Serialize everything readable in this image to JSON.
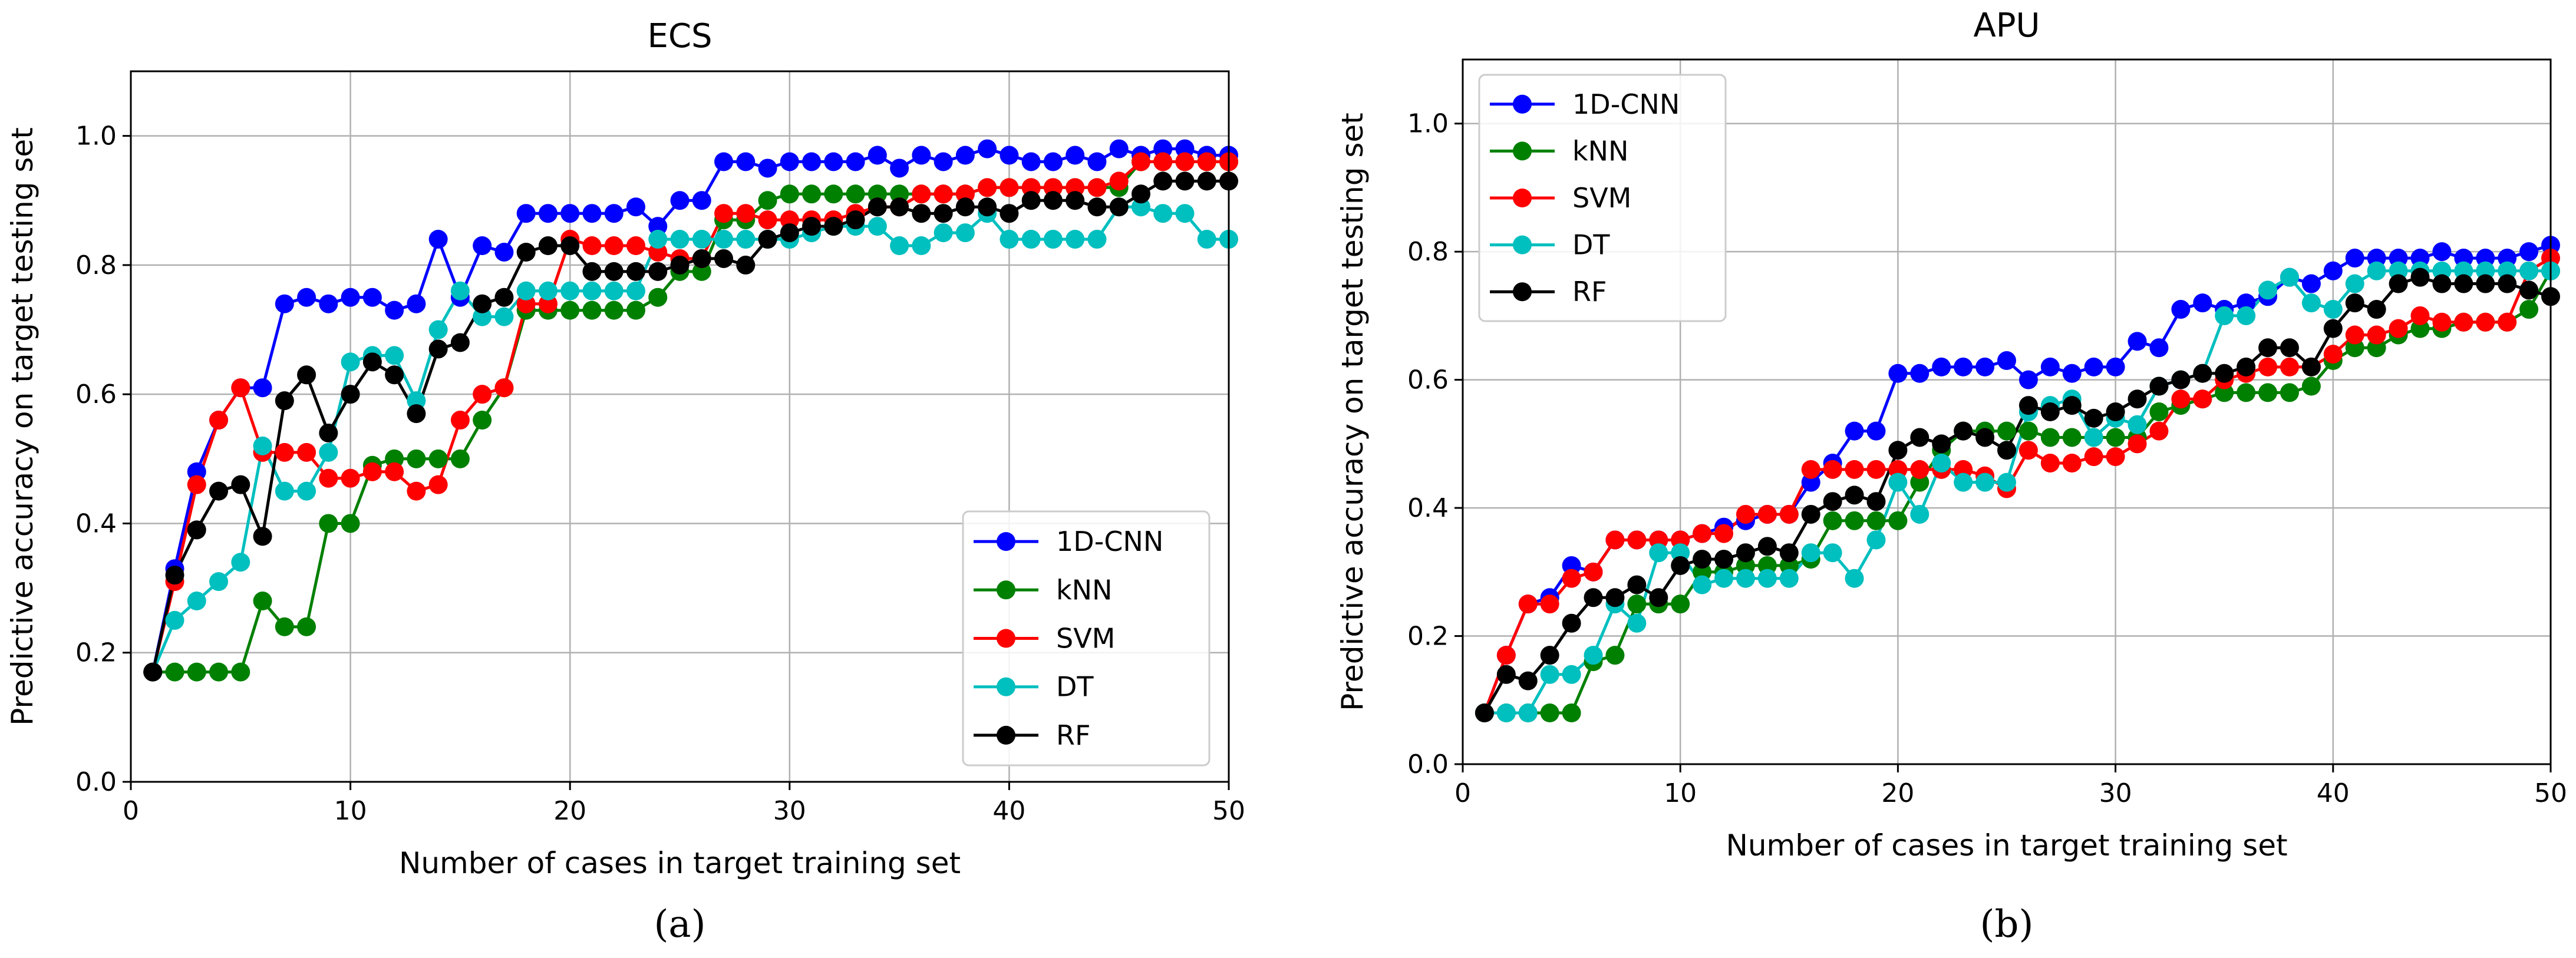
{
  "chart_data": [
    {
      "type": "line",
      "title": "ECS",
      "panel_label": "(a)",
      "xlabel": "Number of cases in target training set",
      "ylabel": "Predictive accuracy on target testing set",
      "xlim": [
        0,
        50
      ],
      "ylim": [
        0,
        1.1
      ],
      "xticks": [
        0,
        10,
        20,
        30,
        40,
        50
      ],
      "yticks": [
        0.0,
        0.2,
        0.4,
        0.6,
        0.8,
        1.0
      ],
      "xtick_labels": [
        "0",
        "10",
        "20",
        "30",
        "40",
        "50"
      ],
      "ytick_labels": [
        "0.0",
        "0.2",
        "0.4",
        "0.6",
        "0.8",
        "1.0"
      ],
      "grid": true,
      "legend_position": "lower-right",
      "x": [
        1,
        2,
        3,
        4,
        5,
        6,
        7,
        8,
        9,
        10,
        11,
        12,
        13,
        14,
        15,
        16,
        17,
        18,
        19,
        20,
        21,
        22,
        23,
        24,
        25,
        26,
        27,
        28,
        29,
        30,
        31,
        32,
        33,
        34,
        35,
        36,
        37,
        38,
        39,
        40,
        41,
        42,
        43,
        44,
        45,
        46,
        47,
        48,
        49,
        50
      ],
      "series": [
        {
          "name": "1D-CNN",
          "color": "#0000ff",
          "values": [
            0.17,
            0.33,
            0.48,
            0.56,
            0.61,
            0.61,
            0.74,
            0.75,
            0.74,
            0.75,
            0.75,
            0.73,
            0.74,
            0.84,
            0.75,
            0.83,
            0.82,
            0.88,
            0.88,
            0.88,
            0.88,
            0.88,
            0.89,
            0.86,
            0.9,
            0.9,
            0.96,
            0.96,
            0.95,
            0.96,
            0.96,
            0.96,
            0.96,
            0.97,
            0.95,
            0.97,
            0.96,
            0.97,
            0.98,
            0.97,
            0.96,
            0.96,
            0.97,
            0.96,
            0.98,
            0.97,
            0.98,
            0.98,
            0.97,
            0.97
          ]
        },
        {
          "name": "kNN",
          "color": "#008000",
          "values": [
            0.17,
            0.17,
            0.17,
            0.17,
            0.17,
            0.28,
            0.24,
            0.24,
            0.4,
            0.4,
            0.49,
            0.5,
            0.5,
            0.5,
            0.5,
            0.56,
            0.61,
            0.73,
            0.73,
            0.73,
            0.73,
            0.73,
            0.73,
            0.75,
            0.79,
            0.79,
            0.87,
            0.87,
            0.9,
            0.91,
            0.91,
            0.91,
            0.91,
            0.91,
            0.91,
            0.91,
            0.91,
            0.91,
            0.92,
            0.92,
            0.92,
            0.92,
            0.92,
            0.92,
            0.92,
            0.96,
            0.96,
            0.96,
            0.96,
            0.96
          ]
        },
        {
          "name": "SVM",
          "color": "#ff0000",
          "values": [
            0.17,
            0.31,
            0.46,
            0.56,
            0.61,
            0.51,
            0.51,
            0.51,
            0.47,
            0.47,
            0.48,
            0.48,
            0.45,
            0.46,
            0.56,
            0.6,
            0.61,
            0.74,
            0.74,
            0.84,
            0.83,
            0.83,
            0.83,
            0.82,
            0.81,
            0.81,
            0.88,
            0.88,
            0.87,
            0.87,
            0.87,
            0.87,
            0.88,
            0.89,
            0.89,
            0.91,
            0.91,
            0.91,
            0.92,
            0.92,
            0.92,
            0.92,
            0.92,
            0.92,
            0.93,
            0.96,
            0.96,
            0.96,
            0.96,
            0.96
          ]
        },
        {
          "name": "DT",
          "color": "#00bfbf",
          "values": [
            0.17,
            0.25,
            0.28,
            0.31,
            0.34,
            0.52,
            0.45,
            0.45,
            0.51,
            0.65,
            0.66,
            0.66,
            0.59,
            0.7,
            0.76,
            0.72,
            0.72,
            0.76,
            0.76,
            0.76,
            0.76,
            0.76,
            0.76,
            0.84,
            0.84,
            0.84,
            0.84,
            0.84,
            0.84,
            0.84,
            0.85,
            0.86,
            0.86,
            0.86,
            0.83,
            0.83,
            0.85,
            0.85,
            0.88,
            0.84,
            0.84,
            0.84,
            0.84,
            0.84,
            0.89,
            0.89,
            0.88,
            0.88,
            0.84,
            0.84
          ]
        },
        {
          "name": "RF",
          "color": "#000000",
          "values": [
            0.17,
            0.32,
            0.39,
            0.45,
            0.46,
            0.38,
            0.59,
            0.63,
            0.54,
            0.6,
            0.65,
            0.63,
            0.57,
            0.67,
            0.68,
            0.74,
            0.75,
            0.82,
            0.83,
            0.83,
            0.79,
            0.79,
            0.79,
            0.79,
            0.8,
            0.81,
            0.81,
            0.8,
            0.84,
            0.85,
            0.86,
            0.86,
            0.87,
            0.89,
            0.89,
            0.88,
            0.88,
            0.89,
            0.89,
            0.88,
            0.9,
            0.9,
            0.9,
            0.89,
            0.89,
            0.91,
            0.93,
            0.93,
            0.93,
            0.93
          ]
        }
      ]
    },
    {
      "type": "line",
      "title": "APU",
      "panel_label": "(b)",
      "xlabel": "Number of cases in target training set",
      "ylabel": "Predictive accuracy on target testing set",
      "xlim": [
        0,
        50
      ],
      "ylim": [
        0,
        1.1
      ],
      "xticks": [
        0,
        10,
        20,
        30,
        40,
        50
      ],
      "yticks": [
        0.0,
        0.2,
        0.4,
        0.6,
        0.8,
        1.0
      ],
      "xtick_labels": [
        "0",
        "10",
        "20",
        "30",
        "40",
        "50"
      ],
      "ytick_labels": [
        "0.0",
        "0.2",
        "0.4",
        "0.6",
        "0.8",
        "1.0"
      ],
      "grid": true,
      "legend_position": "upper-left",
      "x": [
        1,
        2,
        3,
        4,
        5,
        6,
        7,
        8,
        9,
        10,
        11,
        12,
        13,
        14,
        15,
        16,
        17,
        18,
        19,
        20,
        21,
        22,
        23,
        24,
        25,
        26,
        27,
        28,
        29,
        30,
        31,
        32,
        33,
        34,
        35,
        36,
        37,
        38,
        39,
        40,
        41,
        42,
        43,
        44,
        45,
        46,
        47,
        48,
        49,
        50
      ],
      "series": [
        {
          "name": "1D-CNN",
          "color": "#0000ff",
          "values": [
            0.08,
            0.17,
            0.25,
            0.26,
            0.31,
            0.3,
            0.35,
            0.35,
            0.35,
            0.35,
            0.36,
            0.37,
            0.38,
            0.39,
            0.39,
            0.44,
            0.47,
            0.52,
            0.52,
            0.61,
            0.61,
            0.62,
            0.62,
            0.62,
            0.63,
            0.6,
            0.62,
            0.61,
            0.62,
            0.62,
            0.66,
            0.65,
            0.71,
            0.72,
            0.71,
            0.72,
            0.73,
            0.76,
            0.75,
            0.77,
            0.79,
            0.79,
            0.79,
            0.79,
            0.8,
            0.79,
            0.79,
            0.79,
            0.8,
            0.81
          ]
        },
        {
          "name": "kNN",
          "color": "#008000",
          "values": [
            0.08,
            0.08,
            0.08,
            0.08,
            0.08,
            0.16,
            0.17,
            0.25,
            0.25,
            0.25,
            0.3,
            0.3,
            0.31,
            0.31,
            0.31,
            0.32,
            0.38,
            0.38,
            0.38,
            0.38,
            0.44,
            0.49,
            0.52,
            0.52,
            0.52,
            0.52,
            0.51,
            0.51,
            0.51,
            0.51,
            0.51,
            0.55,
            0.56,
            0.57,
            0.58,
            0.58,
            0.58,
            0.58,
            0.59,
            0.63,
            0.65,
            0.65,
            0.67,
            0.68,
            0.68,
            0.69,
            0.69,
            0.69,
            0.71,
            0.77
          ]
        },
        {
          "name": "SVM",
          "color": "#ff0000",
          "values": [
            0.08,
            0.17,
            0.25,
            0.25,
            0.29,
            0.3,
            0.35,
            0.35,
            0.35,
            0.35,
            0.36,
            0.36,
            0.39,
            0.39,
            0.39,
            0.46,
            0.46,
            0.46,
            0.46,
            0.46,
            0.46,
            0.46,
            0.46,
            0.45,
            0.43,
            0.49,
            0.47,
            0.47,
            0.48,
            0.48,
            0.5,
            0.52,
            0.57,
            0.57,
            0.6,
            0.61,
            0.62,
            0.62,
            0.62,
            0.64,
            0.67,
            0.67,
            0.68,
            0.7,
            0.69,
            0.69,
            0.69,
            0.69,
            0.77,
            0.79
          ]
        },
        {
          "name": "DT",
          "color": "#00bfbf",
          "values": [
            0.08,
            0.08,
            0.08,
            0.14,
            0.14,
            0.17,
            0.25,
            0.22,
            0.33,
            0.33,
            0.28,
            0.29,
            0.29,
            0.29,
            0.29,
            0.33,
            0.33,
            0.29,
            0.35,
            0.44,
            0.39,
            0.47,
            0.44,
            0.44,
            0.44,
            0.55,
            0.56,
            0.57,
            0.51,
            0.54,
            0.53,
            0.59,
            0.6,
            0.61,
            0.7,
            0.7,
            0.74,
            0.76,
            0.72,
            0.71,
            0.75,
            0.77,
            0.77,
            0.77,
            0.77,
            0.77,
            0.77,
            0.77,
            0.77,
            0.77
          ]
        },
        {
          "name": "RF",
          "color": "#000000",
          "values": [
            0.08,
            0.14,
            0.13,
            0.17,
            0.22,
            0.26,
            0.26,
            0.28,
            0.26,
            0.31,
            0.32,
            0.32,
            0.33,
            0.34,
            0.33,
            0.39,
            0.41,
            0.42,
            0.41,
            0.49,
            0.51,
            0.5,
            0.52,
            0.51,
            0.49,
            0.56,
            0.55,
            0.56,
            0.54,
            0.55,
            0.57,
            0.59,
            0.6,
            0.61,
            0.61,
            0.62,
            0.65,
            0.65,
            0.62,
            0.68,
            0.72,
            0.71,
            0.75,
            0.76,
            0.75,
            0.75,
            0.75,
            0.75,
            0.74,
            0.73
          ]
        }
      ]
    }
  ]
}
